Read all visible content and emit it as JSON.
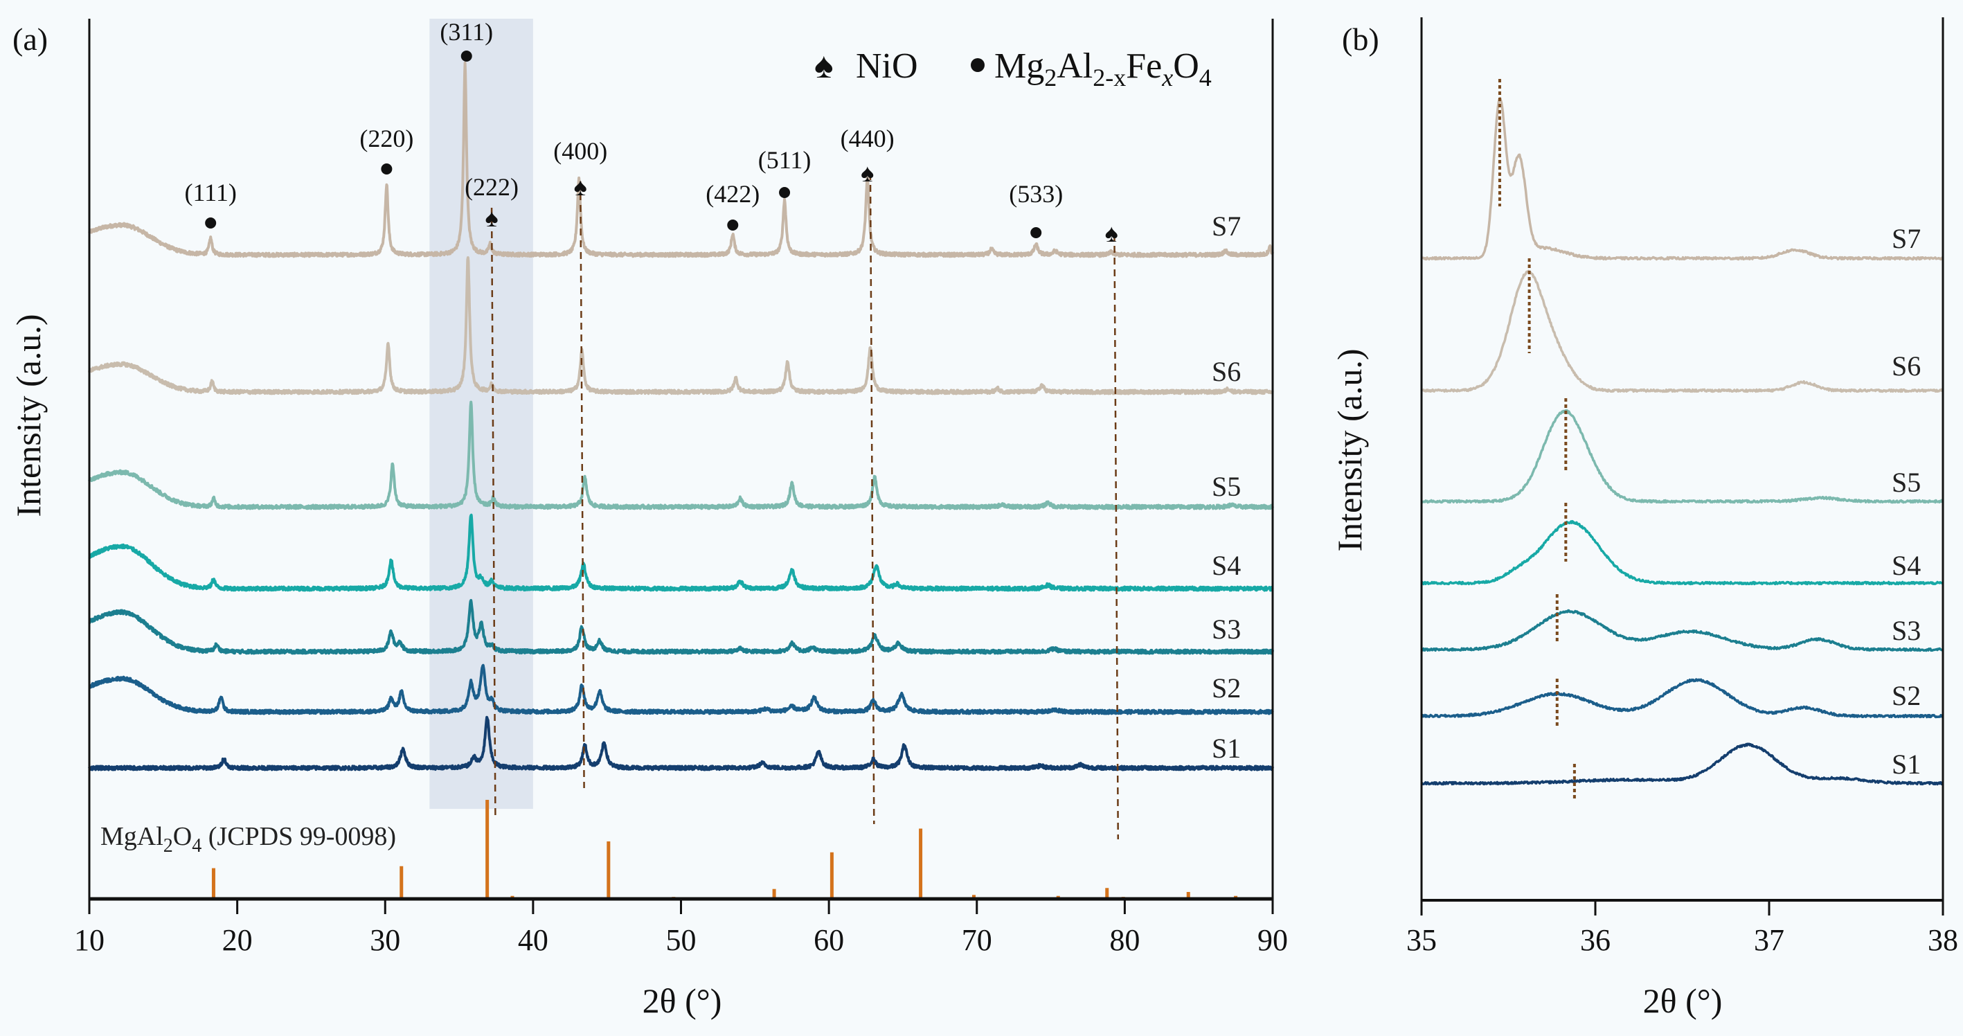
{
  "chart_data": [
    {
      "panel": "(a)",
      "type": "line",
      "xlabel": "2θ (°)",
      "ylabel": "Intensity (a.u.)",
      "xlim": [
        10,
        90
      ],
      "xticks": [
        10,
        20,
        30,
        40,
        50,
        60,
        70,
        80,
        90
      ],
      "highlight_range": [
        33,
        40
      ],
      "legend": {
        "nio": "NiO",
        "spinel_parts": [
          "Mg",
          "2",
          "Al",
          "2-x",
          "Fe",
          "x",
          "O",
          "4"
        ]
      },
      "reflections": [
        {
          "hkl": "(111)",
          "x": 18.2,
          "phase": "spinel"
        },
        {
          "hkl": "(220)",
          "x": 30.1,
          "phase": "spinel"
        },
        {
          "hkl": "(311)",
          "x": 35.5,
          "phase": "spinel"
        },
        {
          "hkl": "(222)",
          "x": 37.2,
          "phase": "NiO"
        },
        {
          "hkl": "(400)",
          "x": 43.2,
          "phase": "NiO"
        },
        {
          "hkl": "(422)",
          "x": 53.5,
          "phase": "spinel"
        },
        {
          "hkl": "(511)",
          "x": 57.0,
          "phase": "spinel"
        },
        {
          "hkl": "(440)",
          "x": 62.6,
          "phase": "NiO"
        },
        {
          "hkl": "(533)",
          "x": 74.0,
          "phase": "spinel"
        },
        {
          "hkl": "",
          "x": 79.1,
          "phase": "NiO"
        }
      ],
      "nio_guides": [
        37.3,
        43.3,
        62.9,
        79.4
      ],
      "reference": {
        "label_parts": [
          "MgAl",
          "2",
          "O",
          "4",
          " (JCPDS 99-0098)"
        ],
        "color": "#d4731c",
        "lines": [
          [
            18.4,
            31
          ],
          [
            31.1,
            33
          ],
          [
            36.9,
            100
          ],
          [
            38.6,
            3
          ],
          [
            45.1,
            58
          ],
          [
            49.5,
            2
          ],
          [
            56.3,
            10
          ],
          [
            60.2,
            47
          ],
          [
            66.2,
            71
          ],
          [
            69.8,
            4
          ],
          [
            70.9,
            1
          ],
          [
            75.5,
            3
          ],
          [
            78.8,
            11
          ],
          [
            79.9,
            2
          ],
          [
            84.3,
            7
          ],
          [
            87.5,
            3
          ]
        ]
      },
      "series": [
        {
          "name": "S7",
          "color": "#c6b6a6",
          "hump": 43,
          "peaks": [
            [
              18.2,
              24,
              0.12
            ],
            [
              30.1,
              102,
              0.12
            ],
            [
              35.4,
              275,
              0.12
            ],
            [
              37.1,
              15,
              0.12
            ],
            [
              43.1,
              110,
              0.13
            ],
            [
              53.5,
              30,
              0.13
            ],
            [
              57.0,
              79,
              0.13
            ],
            [
              62.6,
              110,
              0.14
            ],
            [
              71.0,
              8,
              0.15
            ],
            [
              74.0,
              15,
              0.15
            ],
            [
              75.3,
              6,
              0.15
            ],
            [
              79.1,
              4,
              0.15
            ],
            [
              86.8,
              6,
              0.15
            ],
            [
              89.8,
              12,
              0.1
            ]
          ]
        },
        {
          "name": "S6",
          "color": "#c8bcad",
          "hump": 40,
          "peaks": [
            [
              18.3,
              15,
              0.12
            ],
            [
              30.2,
              71,
              0.13
            ],
            [
              35.6,
              196,
              0.13
            ],
            [
              37.2,
              10,
              0.13
            ],
            [
              43.3,
              60,
              0.14
            ],
            [
              53.7,
              20,
              0.15
            ],
            [
              57.2,
              45,
              0.15
            ],
            [
              62.8,
              65,
              0.16
            ],
            [
              71.4,
              5,
              0.15
            ],
            [
              74.4,
              10,
              0.16
            ],
            [
              87.0,
              5,
              0.15
            ]
          ]
        },
        {
          "name": "S5",
          "color": "#7cb9ae",
          "hump": 50,
          "peaks": [
            [
              18.4,
              12,
              0.12
            ],
            [
              30.5,
              62,
              0.14
            ],
            [
              35.8,
              150,
              0.14
            ],
            [
              37.3,
              12,
              0.14
            ],
            [
              43.5,
              42,
              0.16
            ],
            [
              54.0,
              12,
              0.17
            ],
            [
              57.5,
              34,
              0.17
            ],
            [
              63.1,
              43,
              0.18
            ],
            [
              71.7,
              4,
              0.2
            ],
            [
              74.8,
              6,
              0.2
            ],
            [
              87.2,
              3,
              0.2
            ]
          ]
        },
        {
          "name": "S4",
          "color": "#17a9a6",
          "hump": 61,
          "peaks": [
            [
              18.4,
              14,
              0.13
            ],
            [
              30.4,
              41,
              0.17
            ],
            [
              35.8,
              107,
              0.16
            ],
            [
              36.5,
              12,
              0.2
            ],
            [
              37.2,
              10,
              0.15
            ],
            [
              43.4,
              35,
              0.2
            ],
            [
              54.0,
              11,
              0.2
            ],
            [
              57.5,
              27,
              0.22
            ],
            [
              63.2,
              33,
              0.24
            ],
            [
              64.6,
              6,
              0.2
            ],
            [
              74.8,
              5,
              0.25
            ]
          ]
        },
        {
          "name": "S3",
          "color": "#1c7f90",
          "hump": 57,
          "peaks": [
            [
              18.6,
              10,
              0.15
            ],
            [
              30.4,
              28,
              0.18
            ],
            [
              31.0,
              12,
              0.18
            ],
            [
              35.8,
              70,
              0.18
            ],
            [
              36.5,
              38,
              0.18
            ],
            [
              37.2,
              8,
              0.15
            ],
            [
              43.3,
              36,
              0.18
            ],
            [
              44.5,
              15,
              0.2
            ],
            [
              54.0,
              5,
              0.2
            ],
            [
              57.5,
              12,
              0.22
            ],
            [
              58.9,
              6,
              0.22
            ],
            [
              63.1,
              23,
              0.24
            ],
            [
              64.7,
              12,
              0.24
            ],
            [
              75.2,
              4,
              0.3
            ]
          ]
        },
        {
          "name": "S2",
          "color": "#1b5e8b",
          "hump": 48,
          "peaks": [
            [
              18.9,
              22,
              0.15
            ],
            [
              30.4,
              18,
              0.18
            ],
            [
              31.1,
              28,
              0.18
            ],
            [
              35.8,
              40,
              0.2
            ],
            [
              36.6,
              64,
              0.2
            ],
            [
              37.2,
              14,
              0.15
            ],
            [
              43.3,
              38,
              0.18
            ],
            [
              44.5,
              29,
              0.2
            ],
            [
              55.7,
              4,
              0.3
            ],
            [
              57.5,
              7,
              0.3
            ],
            [
              59.0,
              20,
              0.25
            ],
            [
              63.0,
              16,
              0.22
            ],
            [
              64.9,
              25,
              0.25
            ],
            [
              75.3,
              3,
              0.3
            ]
          ]
        },
        {
          "name": "S1",
          "color": "#143e6e",
          "hump": 0,
          "peaks": [
            [
              19.1,
              14,
              0.15
            ],
            [
              31.2,
              28,
              0.2
            ],
            [
              36.0,
              14,
              0.2
            ],
            [
              36.9,
              72,
              0.18
            ],
            [
              43.5,
              32,
              0.18
            ],
            [
              44.8,
              36,
              0.2
            ],
            [
              55.5,
              7,
              0.25
            ],
            [
              59.3,
              23,
              0.22
            ],
            [
              63.0,
              12,
              0.2
            ],
            [
              65.1,
              33,
              0.22
            ],
            [
              74.3,
              3,
              0.3
            ],
            [
              77.0,
              5,
              0.25
            ]
          ]
        }
      ]
    },
    {
      "panel": "(b)",
      "type": "line",
      "xlabel": "2θ (°)",
      "ylabel": "Intensity (a.u.)",
      "xlim": [
        35,
        38
      ],
      "xticks": [
        35,
        36,
        37,
        38
      ],
      "series": [
        {
          "name": "S7",
          "color": "#c6b6a6",
          "marker_x": 35.45,
          "peaks": [
            [
              35.45,
              225,
              0.035
            ],
            [
              35.56,
              140,
              0.04
            ],
            [
              35.7,
              15,
              0.12
            ],
            [
              37.15,
              12,
              0.08
            ]
          ]
        },
        {
          "name": "S6",
          "color": "#c8bcad",
          "marker_x": 35.62,
          "peaks": [
            [
              35.6,
              150,
              0.09
            ],
            [
              35.75,
              55,
              0.1
            ],
            [
              35.45,
              12,
              0.08
            ],
            [
              37.2,
              12,
              0.07
            ]
          ]
        },
        {
          "name": "S5",
          "color": "#7cb9ae",
          "marker_x": 35.83,
          "peaks": [
            [
              35.82,
              128,
              0.12
            ],
            [
              36.0,
              12,
              0.1
            ],
            [
              37.3,
              5,
              0.1
            ]
          ]
        },
        {
          "name": "S4",
          "color": "#17a9a6",
          "marker_x": 35.83,
          "peaks": [
            [
              35.86,
              88,
              0.16
            ],
            [
              35.55,
              10,
              0.08
            ]
          ]
        },
        {
          "name": "S3",
          "color": "#1c7f90",
          "marker_x": 35.78,
          "peaks": [
            [
              35.85,
              55,
              0.19
            ],
            [
              36.55,
              26,
              0.2
            ],
            [
              37.28,
              15,
              0.1
            ]
          ]
        },
        {
          "name": "S2",
          "color": "#1b5e8b",
          "marker_x": 35.78,
          "peaks": [
            [
              35.78,
              32,
              0.2
            ],
            [
              36.58,
              52,
              0.18
            ],
            [
              37.2,
              12,
              0.1
            ]
          ]
        },
        {
          "name": "S1",
          "color": "#143e6e",
          "marker_x": 35.88,
          "peaks": [
            [
              36.88,
              55,
              0.16
            ],
            [
              37.4,
              7,
              0.15
            ],
            [
              36.2,
              5,
              0.3
            ]
          ]
        }
      ]
    }
  ]
}
